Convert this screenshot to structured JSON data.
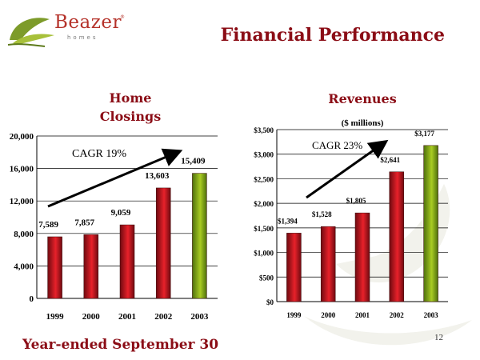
{
  "header": {
    "logo_text": "Beazer",
    "logo_subtext": "homes",
    "logo_tm": "®",
    "title": "Financial Performance"
  },
  "footer": {
    "note": "Year-ended September 30",
    "page_number": "12"
  },
  "colors": {
    "title": "#8b0d16",
    "bar_red_dark": "#6e0a10",
    "bar_red_light": "#e8212a",
    "bar_green_dark": "#4e6f0c",
    "bar_green_light": "#a9cc22",
    "arrow": "#000000"
  },
  "chart_data": [
    {
      "type": "bar",
      "title_lines": [
        "Home",
        "Closings"
      ],
      "subtitle": "",
      "categories": [
        "1999",
        "2000",
        "2001",
        "2002",
        "2003"
      ],
      "values": [
        7589,
        7857,
        9059,
        13603,
        15409
      ],
      "data_labels": [
        "7,589",
        "7,857",
        "9,059",
        "13,603",
        "15,409"
      ],
      "ylim": [
        0,
        20000
      ],
      "yticks": [
        0,
        4000,
        8000,
        12000,
        16000,
        20000
      ],
      "ytick_labels": [
        "0",
        "4,000",
        "8,000",
        "12,000",
        "16,000",
        "20,000"
      ],
      "grid": true,
      "highlight_last": true,
      "annotation": "CAGR 19%"
    },
    {
      "type": "bar",
      "title_lines": [
        "Revenues"
      ],
      "subtitle": "($ millions)",
      "categories": [
        "1999",
        "2000",
        "2001",
        "2002",
        "2003"
      ],
      "values": [
        1394,
        1528,
        1805,
        2641,
        3177
      ],
      "data_labels": [
        "$1,394",
        "$1,528",
        "$1,805",
        "$2,641",
        "$3,177"
      ],
      "ylim": [
        0,
        3500
      ],
      "yticks": [
        0,
        500,
        1000,
        1500,
        2000,
        2500,
        3000,
        3500
      ],
      "ytick_labels": [
        "$0",
        "$500",
        "$1,000",
        "$1,500",
        "$2,000",
        "$2,500",
        "$3,000",
        "$3,500"
      ],
      "grid": true,
      "highlight_last": true,
      "annotation": "CAGR 23%"
    }
  ]
}
